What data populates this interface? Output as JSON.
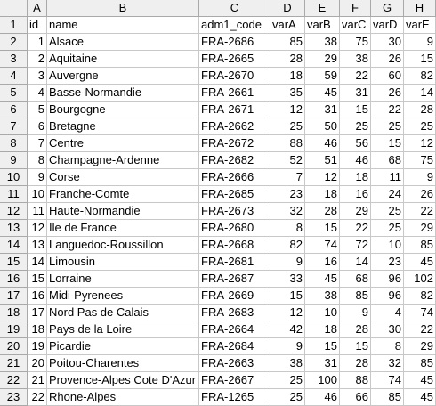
{
  "columns": [
    "A",
    "B",
    "C",
    "D",
    "E",
    "F",
    "G",
    "H"
  ],
  "rows": [
    [
      "id",
      "name",
      "adm1_code",
      "varA",
      "varB",
      "varC",
      "varD",
      "varE"
    ],
    [
      "1",
      "Alsace",
      "FRA-2686",
      "85",
      "38",
      "75",
      "30",
      "9"
    ],
    [
      "2",
      "Aquitaine",
      "FRA-2665",
      "28",
      "29",
      "38",
      "26",
      "15"
    ],
    [
      "3",
      "Auvergne",
      "FRA-2670",
      "18",
      "59",
      "22",
      "60",
      "82"
    ],
    [
      "4",
      "Basse-Normandie",
      "FRA-2661",
      "35",
      "45",
      "31",
      "26",
      "14"
    ],
    [
      "5",
      "Bourgogne",
      "FRA-2671",
      "12",
      "31",
      "15",
      "22",
      "28"
    ],
    [
      "6",
      "Bretagne",
      "FRA-2662",
      "25",
      "50",
      "25",
      "25",
      "25"
    ],
    [
      "7",
      "Centre",
      "FRA-2672",
      "88",
      "46",
      "56",
      "15",
      "12"
    ],
    [
      "8",
      "Champagne-Ardenne",
      "FRA-2682",
      "52",
      "51",
      "46",
      "68",
      "75"
    ],
    [
      "9",
      "Corse",
      "FRA-2666",
      "7",
      "12",
      "18",
      "11",
      "9"
    ],
    [
      "10",
      "Franche-Comte",
      "FRA-2685",
      "23",
      "18",
      "16",
      "24",
      "26"
    ],
    [
      "11",
      "Haute-Normandie",
      "FRA-2673",
      "32",
      "28",
      "29",
      "25",
      "22"
    ],
    [
      "12",
      "Ile de France",
      "FRA-2680",
      "8",
      "15",
      "22",
      "25",
      "29"
    ],
    [
      "13",
      "Languedoc-Roussillon",
      "FRA-2668",
      "82",
      "74",
      "72",
      "10",
      "85"
    ],
    [
      "14",
      "Limousin",
      "FRA-2681",
      "9",
      "16",
      "14",
      "23",
      "45"
    ],
    [
      "15",
      "Lorraine",
      "FRA-2687",
      "33",
      "45",
      "68",
      "96",
      "102"
    ],
    [
      "16",
      "Midi-Pyrenees",
      "FRA-2669",
      "15",
      "38",
      "85",
      "96",
      "82"
    ],
    [
      "17",
      "Nord Pas de Calais",
      "FRA-2683",
      "12",
      "10",
      "9",
      "4",
      "74"
    ],
    [
      "18",
      "Pays de la Loire",
      "FRA-2664",
      "42",
      "18",
      "28",
      "30",
      "22"
    ],
    [
      "19",
      "Picardie",
      "FRA-2684",
      "9",
      "15",
      "15",
      "8",
      "29"
    ],
    [
      "20",
      "Poitou-Charentes",
      "FRA-2663",
      "38",
      "31",
      "28",
      "32",
      "85"
    ],
    [
      "21",
      "Provence-Alpes Cote D'Azur",
      "FRA-2667",
      "25",
      "100",
      "88",
      "74",
      "45"
    ],
    [
      "22",
      "Rhone-Alpes",
      "FRA-1265",
      "25",
      "46",
      "66",
      "85",
      "45"
    ]
  ]
}
